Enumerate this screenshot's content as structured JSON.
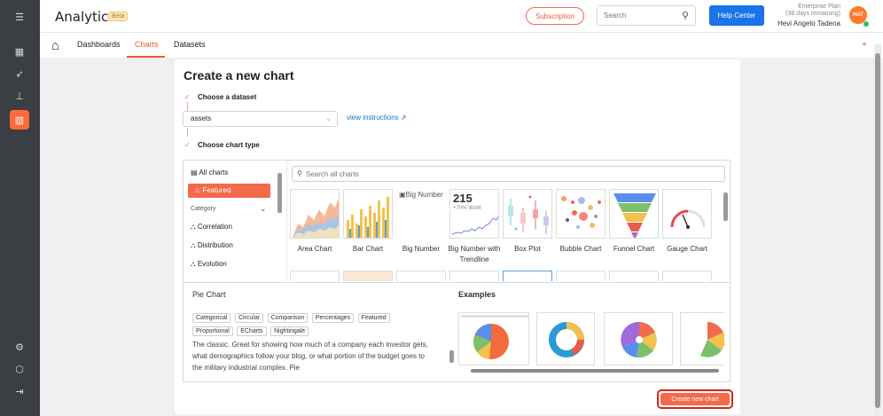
{
  "app": {
    "title": "Analytics",
    "badge": "Beta"
  },
  "header": {
    "subscription_label": "Subscription",
    "search_placeholder": "Search",
    "help_label": "Help Center",
    "plan_line1": "Enterprise Plan",
    "plan_line2": "(38 days remaining)",
    "user_name": "Hevi Angelo Tadena",
    "avatar_initials": "HAT"
  },
  "nav": {
    "tabs": [
      {
        "label": "Dashboards"
      },
      {
        "label": "Charts"
      },
      {
        "label": "Datasets"
      }
    ],
    "add_label": "+"
  },
  "page": {
    "title": "Create a new chart",
    "step1_label": "Choose a dataset",
    "dataset_value": "assets",
    "view_instructions": "view instructions",
    "step2_label": "Choose chart type"
  },
  "categories": {
    "all_charts": "All charts",
    "featured": "Featured",
    "category_heading": "Category",
    "items": [
      "Correlation",
      "Distribution",
      "Evolution"
    ]
  },
  "gallery": {
    "search_placeholder": "Search all charts",
    "charts": [
      {
        "label": "Area Chart"
      },
      {
        "label": "Bar Chart"
      },
      {
        "label": "Big Number"
      },
      {
        "label": "Big Number with Trendline"
      },
      {
        "label": "Box Plot"
      },
      {
        "label": "Bubble Chart"
      },
      {
        "label": "Funnel Chart"
      },
      {
        "label": "Gauge Chart"
      }
    ],
    "big_number_alt": "Big Number",
    "trendline_value": "215",
    "trendline_delta": "+70% WoW"
  },
  "detail": {
    "title": "Pie Chart",
    "tags": [
      "Categorical",
      "Circular",
      "Comparison",
      "Percentages",
      "Featured",
      "Proportional",
      "ECharts",
      "Nightingale"
    ],
    "description": "The classic. Great for showing how much of a company each investor gets, what demographics follow your blog, or what portion of the budget goes to the military industrial complex. Pie",
    "examples_title": "Examples"
  },
  "footer": {
    "create_label": "Create new chart"
  },
  "colors": {
    "accent": "#f26b4a",
    "primary": "#1a73e8",
    "rail": "#3b3e42"
  },
  "icons": [
    "menu-icon",
    "dashboard-icon",
    "rocket-icon",
    "sitemap-icon",
    "chart-icon",
    "gear-icon",
    "cube-icon",
    "logout-icon",
    "home-icon",
    "search-icon",
    "check-icon",
    "external-link-icon",
    "fire-icon",
    "chevron-down-icon"
  ]
}
